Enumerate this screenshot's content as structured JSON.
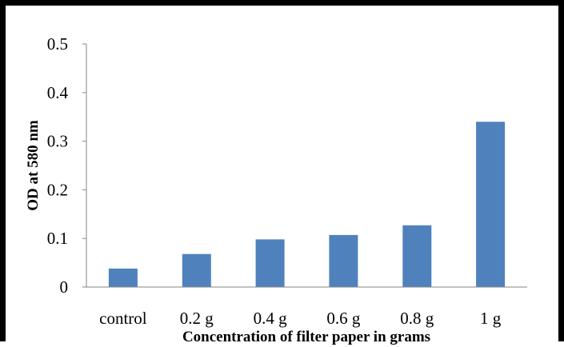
{
  "chart_data": {
    "type": "bar",
    "title": "",
    "xlabel": "Concentration of filter paper in grams",
    "ylabel": "OD at 580 nm",
    "categories": [
      "control",
      "0.2 g",
      "0.4 g",
      "0.6 g",
      "0.8 g",
      "1 g"
    ],
    "values": [
      0.038,
      0.068,
      0.098,
      0.107,
      0.127,
      0.34
    ],
    "ylim": [
      0,
      0.5
    ],
    "yticks": [
      "0",
      "0.1",
      "0.2",
      "0.3",
      "0.4",
      "0.5"
    ],
    "grid": false,
    "legend": "none",
    "bar_color": "#4f81bd",
    "frame_color": "#000000"
  }
}
